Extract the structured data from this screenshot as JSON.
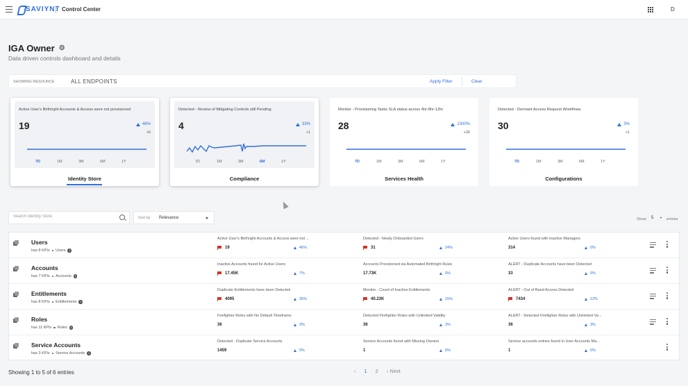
{
  "topbar": {
    "logo_text": "SAVIYNT",
    "app_title": "Control Center",
    "avatar_initial": "D",
    "icons": [
      "menu-icon",
      "apps-grid-icon"
    ]
  },
  "header": {
    "title": "IGA Owner",
    "subtitle": "Data driven controls dashboard and details",
    "icon": "gear-icon"
  },
  "filter": {
    "label": "SHOWING RESOURCE",
    "value": "ALL ENDPOINTS",
    "apply_label": "Apply Filter",
    "clear_label": "Clear"
  },
  "colors": {
    "accent": "#2f6fdc",
    "alert_flag": "#d93025",
    "background": "#f4f5f7"
  },
  "cards": [
    {
      "kpi_title": "Active User's Birthright Accounts & Access were not provisioned",
      "value": "19",
      "pct": "46%",
      "delta": "+6",
      "periods": [
        "7D",
        "1M",
        "3M",
        "6M",
        "1Y"
      ],
      "selected_period": "7D",
      "category": "Identity Store",
      "active": true
    },
    {
      "kpi_title": "Detected - Review of Mitigating Controls still Pending",
      "value": "4",
      "pct": "33%",
      "delta": "+1",
      "periods": [
        "7D",
        "1M",
        "3M",
        "6M",
        "1Y"
      ],
      "selected_period": "6M",
      "category": "Compliance",
      "active": true
    },
    {
      "kpi_title": "Monitor - Provisioning Tasks SLA status across 4hr-8hr-12hr",
      "value": "28",
      "pct": "1300%",
      "delta": "+26",
      "periods": [
        "7D",
        "1M",
        "3M",
        "6M",
        "1Y"
      ],
      "selected_period": "7D",
      "category": "Services Health",
      "active": false
    },
    {
      "kpi_title": "Detected - Dormant Access Request Workflows",
      "value": "30",
      "pct": "3%",
      "delta": "+1",
      "periods": [
        "7D",
        "1M",
        "3M",
        "6M",
        "1Y"
      ],
      "selected_period": "7D",
      "category": "Configurations",
      "active": false
    }
  ],
  "search": {
    "placeholder": "Search Identity Store",
    "sort_label": "Sort by",
    "sort_value": "Relevance",
    "show_label": "Show",
    "show_value": "5",
    "entries_label": "entries"
  },
  "rows": [
    {
      "name": "Users",
      "kpi_count": "has 8 KPIs",
      "type": "Users",
      "kpis": [
        {
          "title": "Active User's Birthright Accounts & Access were not ...",
          "value": "19",
          "pct": "46%",
          "flag": true
        },
        {
          "title": "Detected - Newly Onboarded Users",
          "value": "31",
          "pct": "24%",
          "flag": true
        },
        {
          "title": "Active Users found with Inactive Managers",
          "value": "314",
          "pct": "0%",
          "flag": false
        }
      ]
    },
    {
      "name": "Accounts",
      "kpi_count": "has 7 KPIs",
      "type": "Accounts",
      "kpis": [
        {
          "title": "Inactive Accounts found for Active Users",
          "value": "17.45K",
          "pct": "7%",
          "flag": true
        },
        {
          "title": "Accounts Provisioned via Automated Birthright Rules",
          "value": "17.73K",
          "pct": "0%",
          "flag": false
        },
        {
          "title": "ALERT - Duplicate Accounts have been Detected",
          "value": "33",
          "pct": "0%",
          "flag": false
        }
      ]
    },
    {
      "name": "Entitlements",
      "kpi_count": "has 8 KPIs",
      "type": "Entitlements",
      "kpis": [
        {
          "title": "Duplicate Entitlements have been Detected",
          "value": "4095",
          "pct": "35%",
          "flag": true
        },
        {
          "title": "Monitor - Count of Inactive Entitlements",
          "value": "40.23K",
          "pct": "15%",
          "flag": true
        },
        {
          "title": "ALERT - Out of Band Access Detected",
          "value": "7434",
          "pct": "12%",
          "flag": true
        }
      ]
    },
    {
      "name": "Roles",
      "kpi_count": "has 11 KPIs",
      "type": "Roles",
      "kpis": [
        {
          "title": "Firefighter Roles with No Default Timeframe",
          "value": "36",
          "pct": "3%",
          "flag": false
        },
        {
          "title": "Detected Firefighter Roles with Unlimited Validity",
          "value": "36",
          "pct": "3%",
          "flag": false
        },
        {
          "title": "ALERT - Detected Firefighter Roles with Unlimited Va...",
          "value": "36",
          "pct": "3%",
          "flag": false
        }
      ]
    },
    {
      "name": "Service Accounts",
      "kpi_count": "has 3 KPIs",
      "type": "Service Accounts",
      "kpis": [
        {
          "title": "Detected - Duplicate Service Accounts",
          "value": "1459",
          "pct": "0%",
          "flag": false
        },
        {
          "title": "Service Accounts found with Missing Owners",
          "value": "1",
          "pct": "0%",
          "flag": false
        },
        {
          "title": "Service accounts entries found in User Accounts Ma...",
          "value": "1",
          "pct": "0%",
          "flag": false
        }
      ]
    }
  ],
  "footer": {
    "showing": "Showing 1 to 5 of 6 entries",
    "prev": "‹",
    "pages": [
      "1",
      "2"
    ],
    "current_page": "1",
    "next": "› Next"
  }
}
